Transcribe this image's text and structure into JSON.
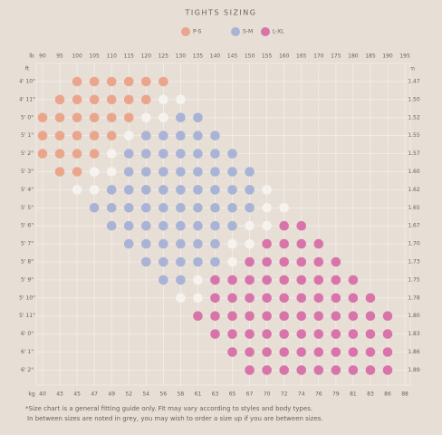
{
  "chart_data": {
    "type": "size-grid",
    "title": "TIGHTS SIZING",
    "x_label": "lb",
    "x2_label": "kg",
    "y_label": "ft",
    "y2_label": "m",
    "xticks": [
      90,
      95,
      100,
      105,
      110,
      115,
      120,
      125,
      130,
      135,
      140,
      145,
      150,
      155,
      160,
      165,
      170,
      175,
      180,
      185,
      190,
      195
    ],
    "x2ticks": [
      40,
      43,
      45,
      47,
      49,
      52,
      54,
      56,
      58,
      61,
      63,
      65,
      67,
      70,
      72,
      74,
      76,
      79,
      81,
      83,
      86,
      88
    ],
    "yticks": [
      "4' 10\"",
      "4' 11\"",
      "5' 0\"",
      "5' 1\"",
      "5' 2\"",
      "5' 3\"",
      "5' 4\"",
      "5' 5\"",
      "5' 6\"",
      "5' 7\"",
      "5' 8\"",
      "5' 9\"",
      "5' 10\"",
      "5' 11\"",
      "6' 0\"",
      "6' 1\"",
      "6' 2\""
    ],
    "y2ticks": [
      1.47,
      "1.50",
      1.52,
      1.55,
      1.57,
      "1.60",
      1.62,
      1.65,
      1.67,
      "1.70",
      1.73,
      1.75,
      1.78,
      "1.80",
      1.83,
      1.86,
      1.89
    ],
    "series": [
      {
        "name": "P-S",
        "color": "#eaa68c",
        "runs": [
          [
            0,
            2,
            7
          ],
          [
            1,
            1,
            6
          ],
          [
            2,
            0,
            5
          ],
          [
            3,
            0,
            4
          ],
          [
            4,
            0,
            3
          ],
          [
            5,
            1,
            2
          ]
        ]
      },
      {
        "name": "S-M",
        "color": "#a9b3d6",
        "runs": [
          [
            2,
            8,
            9
          ],
          [
            3,
            6,
            10
          ],
          [
            4,
            5,
            11
          ],
          [
            5,
            5,
            12
          ],
          [
            6,
            4,
            12
          ],
          [
            7,
            3,
            12
          ],
          [
            8,
            4,
            11
          ],
          [
            9,
            5,
            10
          ],
          [
            10,
            6,
            10
          ],
          [
            11,
            7,
            8
          ]
        ]
      },
      {
        "name": "L-XL",
        "color": "#d874a9",
        "runs": [
          [
            8,
            14,
            15
          ],
          [
            9,
            13,
            16
          ],
          [
            10,
            12,
            17
          ],
          [
            11,
            10,
            18
          ],
          [
            12,
            10,
            19
          ],
          [
            13,
            9,
            20
          ],
          [
            14,
            10,
            20
          ],
          [
            15,
            11,
            20
          ],
          [
            16,
            12,
            20
          ]
        ]
      }
    ],
    "between": {
      "color": "#f6f2ee",
      "runs": [
        [
          1,
          7,
          8
        ],
        [
          2,
          6,
          7
        ],
        [
          3,
          5,
          5
        ],
        [
          4,
          4,
          4
        ],
        [
          5,
          3,
          4
        ],
        [
          6,
          2,
          3
        ],
        [
          6,
          13,
          13
        ],
        [
          7,
          13,
          14
        ],
        [
          8,
          12,
          13
        ],
        [
          9,
          11,
          12
        ],
        [
          10,
          11,
          11
        ],
        [
          11,
          9,
          9
        ],
        [
          12,
          8,
          9
        ]
      ]
    },
    "footnote": [
      "*Size chart is a general fitting guide only. Fit may vary according to styles and body types.",
      "In between sizes are noted in grey, you may wish to order a size up if you are between sizes."
    ]
  }
}
